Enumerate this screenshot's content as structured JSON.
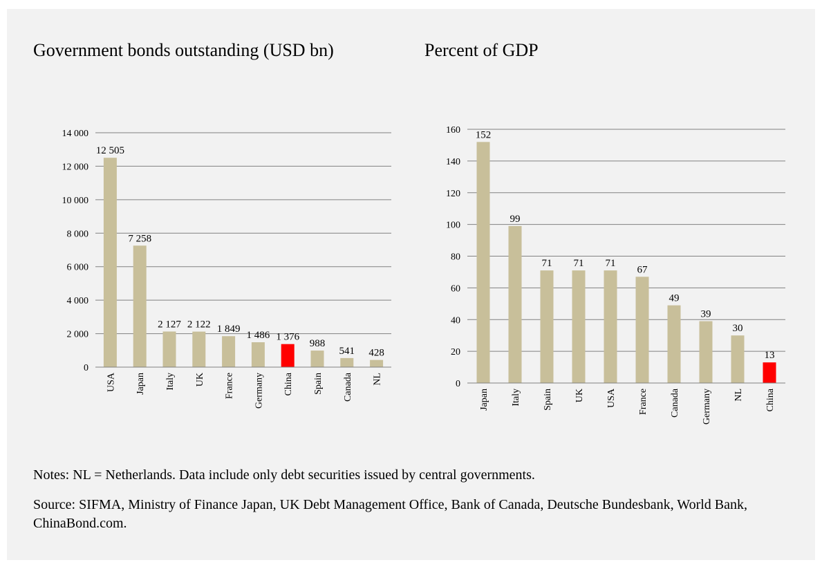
{
  "colors": {
    "bar": "#c8bf9a",
    "highlight": "#ff0000",
    "grid": "#808080",
    "panel": "#f2f2f2"
  },
  "notes": "Notes: NL = Netherlands. Data include only debt securities issued by central governments.",
  "source": "Source: SIFMA, Ministry of Finance Japan, UK Debt Management Office, Bank of Canada, Deutsche Bundesbank, World Bank, ChinaBond.com.",
  "chart_data": [
    {
      "type": "bar",
      "title": "Government bonds outstanding (USD bn)",
      "categories": [
        "USA",
        "Japan",
        "Italy",
        "UK",
        "France",
        "Germany",
        "China",
        "Spain",
        "Canada",
        "NL"
      ],
      "values": [
        12505,
        7258,
        2127,
        2122,
        1849,
        1486,
        1376,
        988,
        541,
        428
      ],
      "data_labels": [
        "12 505",
        "7 258",
        "2 127",
        "2 122",
        "1 849",
        "1 486",
        "1 376",
        "988",
        "541",
        "428"
      ],
      "highlight_category": "China",
      "ylim": [
        0,
        14000
      ],
      "yticks": [
        0,
        2000,
        4000,
        6000,
        8000,
        10000,
        12000,
        14000
      ],
      "ytick_labels": [
        "0",
        "2 000",
        "4 000",
        "6 000",
        "8 000",
        "10 000",
        "12 000",
        "14 000"
      ],
      "xlabel": "",
      "ylabel": "",
      "grid": true,
      "legend": "none"
    },
    {
      "type": "bar",
      "title": "Percent of GDP",
      "categories": [
        "Japan",
        "Italy",
        "Spain",
        "UK",
        "USA",
        "France",
        "Canada",
        "Germany",
        "NL",
        "China"
      ],
      "values": [
        152,
        99,
        71,
        71,
        71,
        67,
        49,
        39,
        30,
        13
      ],
      "data_labels": [
        "152",
        "99",
        "71",
        "71",
        "71",
        "67",
        "49",
        "39",
        "30",
        "13"
      ],
      "highlight_category": "China",
      "ylim": [
        0,
        160
      ],
      "yticks": [
        0,
        20,
        40,
        60,
        80,
        100,
        120,
        140,
        160
      ],
      "ytick_labels": [
        "0",
        "20",
        "40",
        "60",
        "80",
        "100",
        "120",
        "140",
        "160"
      ],
      "xlabel": "",
      "ylabel": "",
      "grid": true,
      "legend": "none"
    }
  ]
}
